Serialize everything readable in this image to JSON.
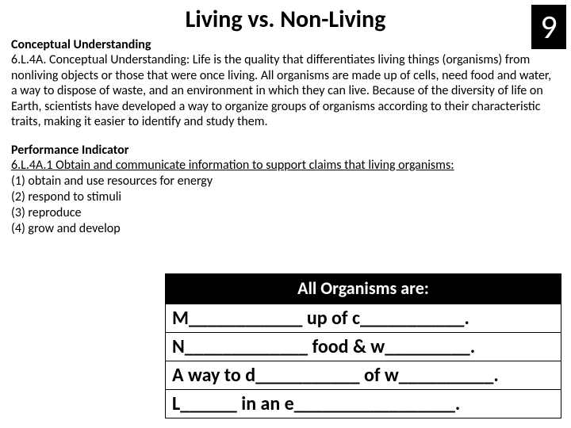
{
  "page_number": "9",
  "title": "Living vs. Non-Living",
  "conceptual": {
    "heading": "Conceptual Understanding",
    "body": "6.L.4A. Conceptual Understanding: Life is the quality that differentiates living things (organisms) from nonliving objects or those that were once living. All organisms are made up of cells, need food and water, a way to dispose of waste, and an environment in which they can live. Because of the diversity of life on Earth, scientists have developed a way to organize groups of organisms according to their characteristic traits, making it easier to identify and study them."
  },
  "performance": {
    "heading": "Performance Indicator",
    "intro": "6.L.4A.1 Obtain and communicate information to support claims that living organisms:",
    "items": [
      "(1)  obtain and use resources for energy",
      "(2)  respond to stimuli",
      "(3)  reproduce",
      "(4)  grow and develop"
    ]
  },
  "organisms": {
    "header": "All Organisms are:",
    "rows": [
      "M____________ up of c___________.",
      "N_____________ food & w_________.",
      "A way to d___________ of w__________.",
      "L______ in an e_________________."
    ]
  }
}
